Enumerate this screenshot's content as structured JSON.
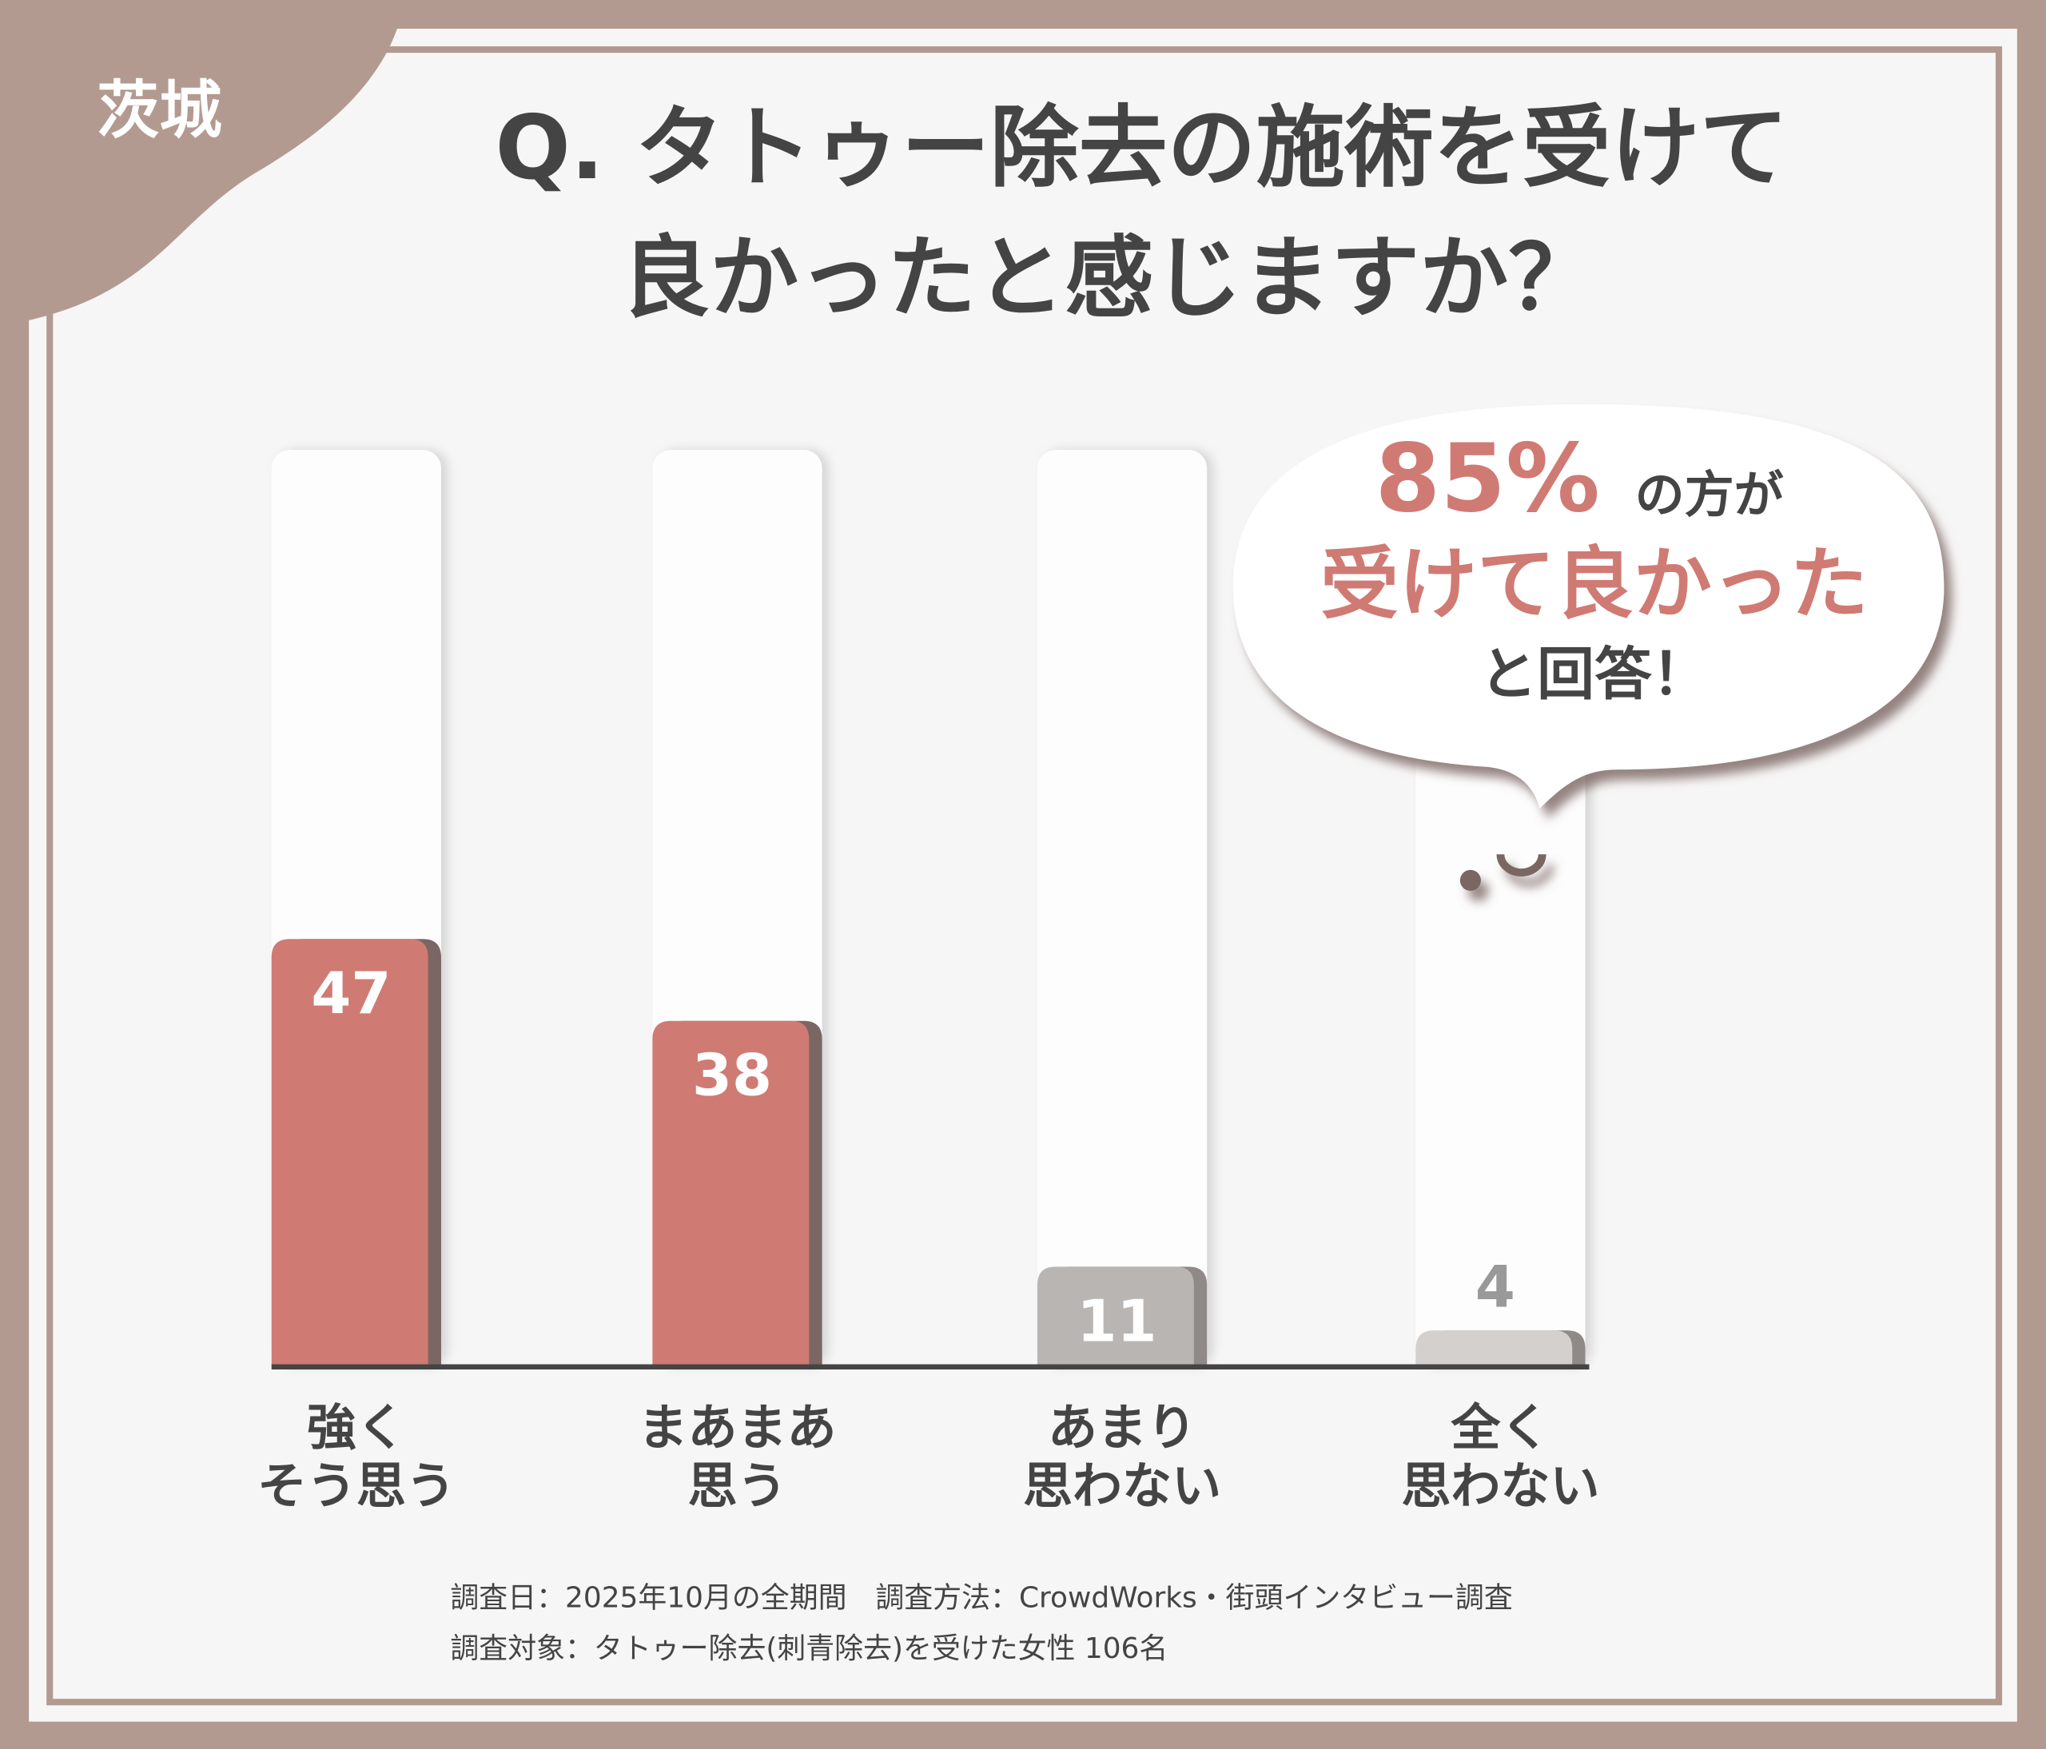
{
  "badge": "茨城",
  "chart_data": {
    "type": "bar",
    "title": [
      "Q. タトゥー除去の施術を受けて",
      "良かったと感じますか？"
    ],
    "categories": [
      [
        "強く",
        "そう思う"
      ],
      [
        "まあまあ",
        "思う"
      ],
      [
        "あまり",
        "思わない"
      ],
      [
        "全く",
        "思わない"
      ]
    ],
    "values": [
      47,
      38,
      11,
      4
    ],
    "colors": [
      "#d07a74",
      "#d07a74",
      "#b9b5b3",
      "#d3d0ce"
    ],
    "callout": {
      "highlight": "85%",
      "line1": "の方が",
      "line2": "受けて良かった",
      "line3": "と回答！"
    }
  },
  "footer": [
    "調査日：2025年10月の全期間　調査方法：CrowdWorks・街頭インタビュー調査",
    "調査対象：タトゥー除去(刺青除去)を受けた女性 106名"
  ]
}
